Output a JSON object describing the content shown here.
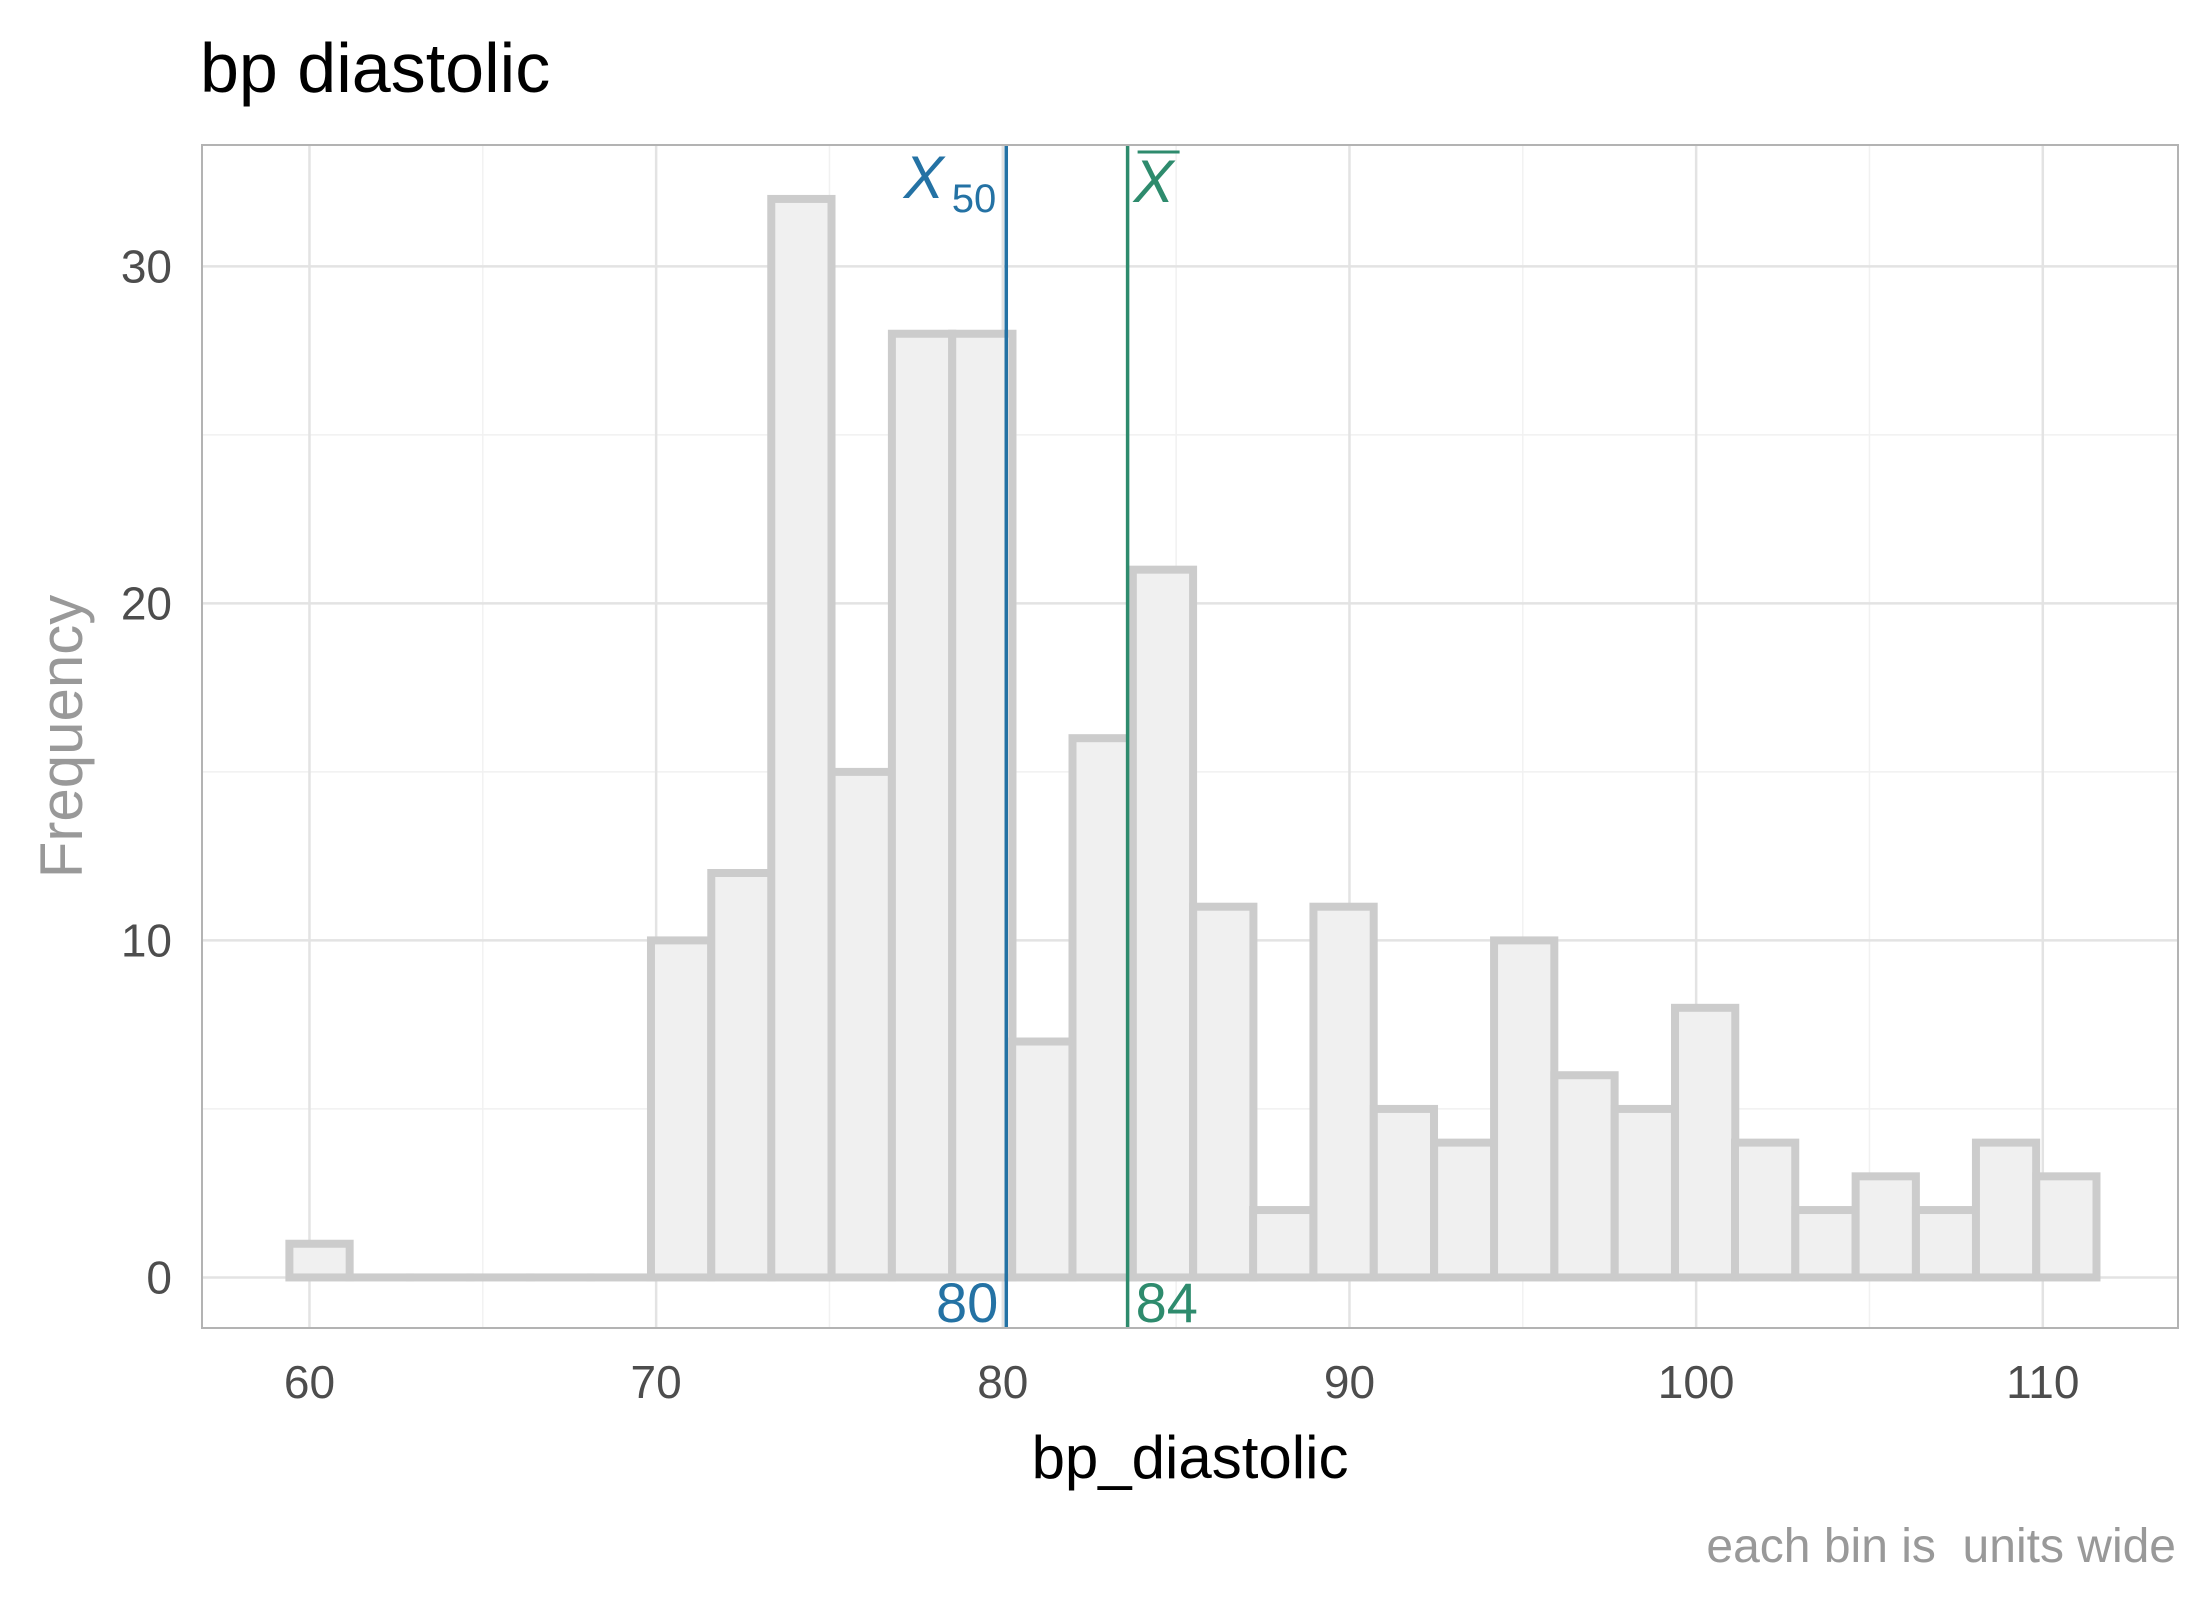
{
  "chart_data": {
    "type": "histogram",
    "title": "bp diastolic",
    "xlabel": "bp_diastolic",
    "ylabel": "Frequency",
    "caption": "each bin is  units wide",
    "x_ticks": [
      60,
      70,
      80,
      90,
      100,
      110
    ],
    "y_ticks": [
      0,
      10,
      20,
      30
    ],
    "xlim": [
      56.9,
      113.9
    ],
    "ylim": [
      -1.5,
      33.6
    ],
    "bin_width": 1.738,
    "bins": [
      {
        "center": 60.29,
        "count": 1
      },
      {
        "center": 62.03,
        "count": 0
      },
      {
        "center": 63.77,
        "count": 0
      },
      {
        "center": 65.51,
        "count": 0
      },
      {
        "center": 67.24,
        "count": 0
      },
      {
        "center": 68.98,
        "count": 0
      },
      {
        "center": 70.72,
        "count": 10
      },
      {
        "center": 72.46,
        "count": 12
      },
      {
        "center": 74.19,
        "count": 32
      },
      {
        "center": 75.93,
        "count": 15
      },
      {
        "center": 77.67,
        "count": 28
      },
      {
        "center": 79.41,
        "count": 28
      },
      {
        "center": 81.14,
        "count": 7
      },
      {
        "center": 82.88,
        "count": 16
      },
      {
        "center": 84.62,
        "count": 21
      },
      {
        "center": 86.36,
        "count": 11
      },
      {
        "center": 88.09,
        "count": 2
      },
      {
        "center": 89.83,
        "count": 11
      },
      {
        "center": 91.57,
        "count": 5
      },
      {
        "center": 93.31,
        "count": 4
      },
      {
        "center": 95.04,
        "count": 10
      },
      {
        "center": 96.78,
        "count": 6
      },
      {
        "center": 98.52,
        "count": 5
      },
      {
        "center": 100.26,
        "count": 8
      },
      {
        "center": 101.99,
        "count": 4
      },
      {
        "center": 103.73,
        "count": 2
      },
      {
        "center": 105.47,
        "count": 3
      },
      {
        "center": 107.21,
        "count": 2
      },
      {
        "center": 108.94,
        "count": 4
      },
      {
        "center": 110.68,
        "count": 3
      }
    ],
    "median": {
      "value": 80.1,
      "label": "80",
      "symbol": "X",
      "subscript": "50",
      "color": "#2472a4"
    },
    "mean": {
      "value": 83.6,
      "label": "84",
      "symbol": "X",
      "color": "#2e8b6d"
    },
    "bar_fill": "#f0f0f0",
    "bar_outline": "#cccccc",
    "grid": true
  }
}
